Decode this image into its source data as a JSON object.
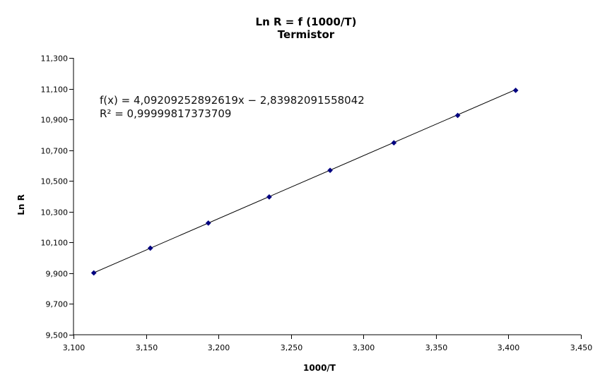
{
  "chart_data": {
    "type": "scatter",
    "title": "Ln R = f (1000/T)",
    "subtitle": "Termistor",
    "xlabel": "1000/T",
    "ylabel": "Ln R",
    "xlim": [
      3.1,
      3.45
    ],
    "ylim": [
      9.5,
      11.3
    ],
    "x_ticks": [
      3.1,
      3.15,
      3.2,
      3.25,
      3.3,
      3.35,
      3.4,
      3.45
    ],
    "y_ticks": [
      9.5,
      9.7,
      9.9,
      10.1,
      10.3,
      10.5,
      10.7,
      10.9,
      11.1,
      11.3
    ],
    "x_tick_labels": [
      "3,100",
      "3,150",
      "3,200",
      "3,250",
      "3,300",
      "3,350",
      "3,400",
      "3,450"
    ],
    "y_tick_labels": [
      "9,500",
      "9,700",
      "9,900",
      "10,100",
      "10,300",
      "10,500",
      "10,700",
      "10,900",
      "11,100",
      "11,300"
    ],
    "grid": false,
    "series": [
      {
        "x": [
          3.114,
          3.153,
          3.193,
          3.235,
          3.277,
          3.321,
          3.365,
          3.405
        ],
        "y": [
          9.902,
          10.063,
          10.226,
          10.396,
          10.569,
          10.748,
          10.926,
          11.089
        ],
        "color": "#000080",
        "marker": "diamond"
      }
    ],
    "trendline": {
      "type": "linear",
      "slope": 4.09209252892619,
      "intercept": -2.83982091558042,
      "color": "#000000",
      "equation": "f(x) = 4,09209252892619x − 2,83982091558042",
      "r_squared": "R² = 0,99999817373709"
    }
  }
}
